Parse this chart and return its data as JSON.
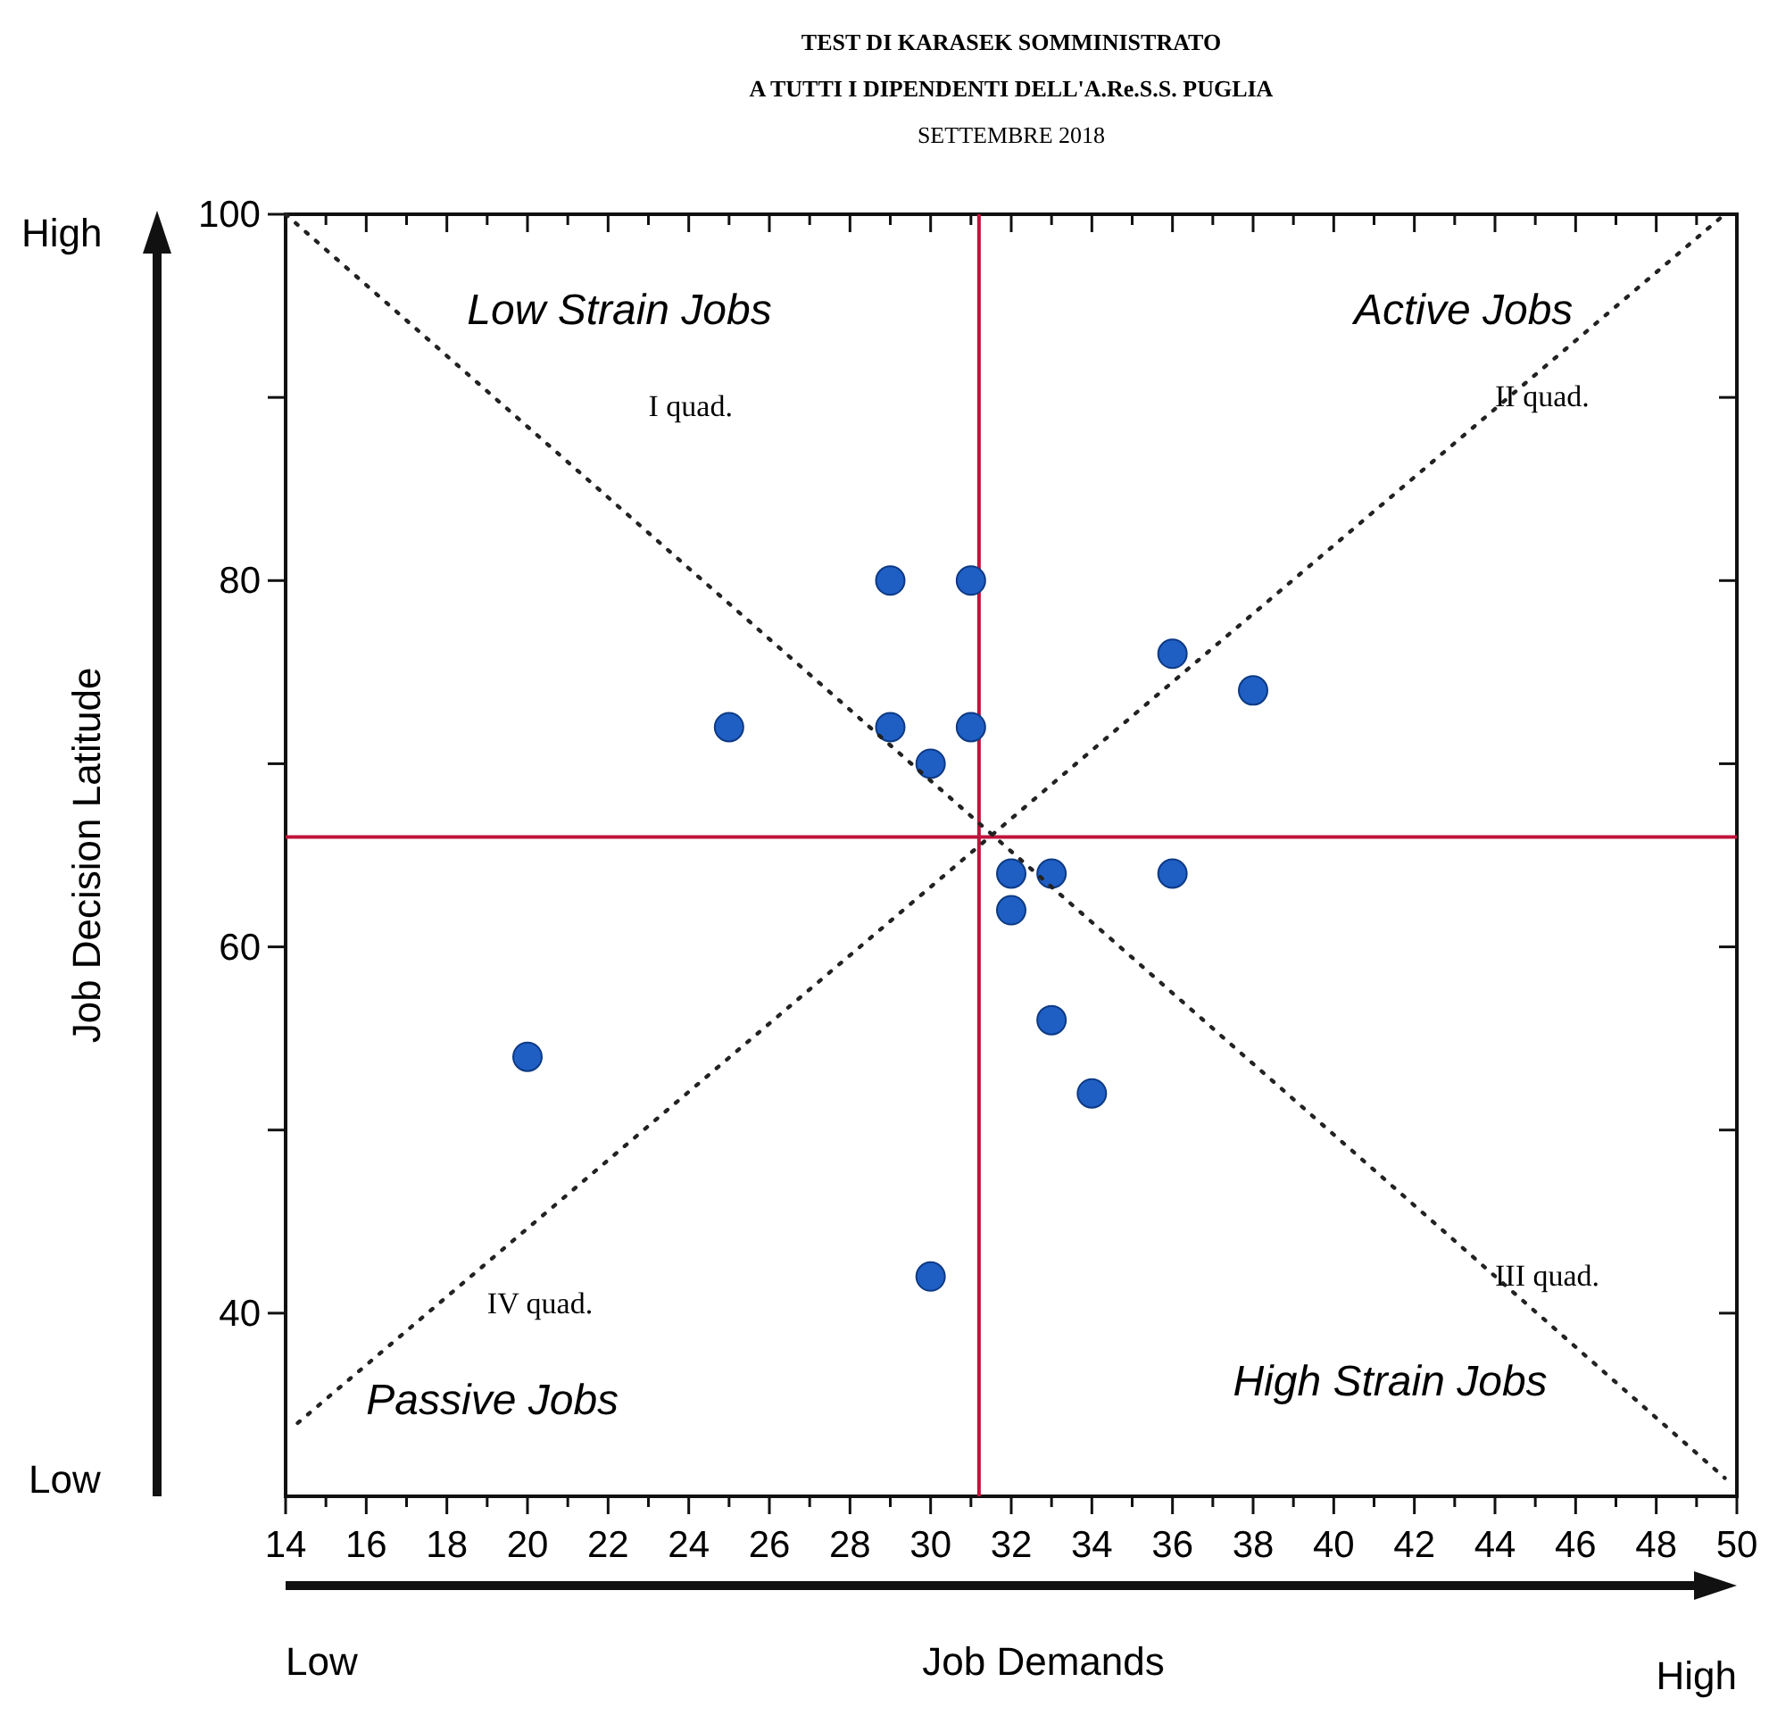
{
  "chart_data": {
    "type": "scatter",
    "title": "TEST DI KARASEK SOMMINISTRATO\nA TUTTI I DIPENDENTI DELL'A.Re.S.S. PUGLIA",
    "subtitle": "SETTEMBRE 2018",
    "xlabel": "Job Demands",
    "ylabel": "Job Decision Latitude",
    "xlim": [
      14,
      50
    ],
    "ylim": [
      30,
      100
    ],
    "xticks": [
      14,
      {
        "value": 15,
        "label": null
      },
      16,
      {
        "value": 17,
        "label": null
      },
      18,
      {
        "value": 19,
        "label": null
      },
      20,
      {
        "value": 21,
        "label": null
      },
      22,
      {
        "value": 23,
        "label": null
      },
      24,
      {
        "value": 25,
        "label": null
      },
      26,
      {
        "value": 27,
        "label": null
      },
      28,
      {
        "value": 29,
        "label": null
      },
      30,
      {
        "value": 31,
        "label": null
      },
      32,
      {
        "value": 33,
        "label": null
      },
      34,
      {
        "value": 35,
        "label": null
      },
      36,
      {
        "value": 37,
        "label": null
      },
      38,
      {
        "value": 39,
        "label": null
      },
      40,
      {
        "value": 41,
        "label": null
      },
      42,
      {
        "value": 43,
        "label": null
      },
      44,
      {
        "value": 45,
        "label": null
      },
      46,
      {
        "value": 47,
        "label": null
      },
      48,
      {
        "value": 49,
        "label": null
      },
      50
    ],
    "yticks": [
      40,
      {
        "value": 50,
        "label": null
      },
      60,
      {
        "value": 70,
        "label": null
      },
      80,
      {
        "value": 90,
        "label": null
      },
      100
    ],
    "grid": false,
    "marker": "circle",
    "series": [
      {
        "color": "#1f5fc4",
        "x": [
          25,
          29,
          31,
          29,
          31,
          30,
          36,
          38,
          32,
          33,
          36,
          32,
          33,
          34,
          20,
          30
        ],
        "values": [
          72,
          80,
          80,
          72,
          72,
          70,
          76,
          74,
          64,
          64,
          64,
          62,
          56,
          52,
          54,
          42
        ]
      },
      {
        "type": "line",
        "color": "#222222",
        "line_style": "dotted",
        "marker": "none",
        "x": [
          14,
          49.7
        ],
        "values": [
          100,
          31
        ]
      },
      {
        "type": "line",
        "color": "#222222",
        "line_style": "dotted",
        "marker": "none",
        "x": [
          14.3,
          49.7
        ],
        "values": [
          34,
          100
        ]
      }
    ],
    "ref_lines": [
      {
        "axis": "x",
        "value": 31.2,
        "color": "#c0143c"
      },
      {
        "axis": "y",
        "value": 66,
        "color": "#c0143c"
      }
    ],
    "annotations": [
      "Low Strain Jobs",
      "Active Jobs",
      "High Strain Jobs",
      "Passive Jobs",
      "I quad.",
      "II quad.",
      "III quad.",
      "IV quad.",
      "High",
      "Low",
      "Low",
      "High"
    ]
  }
}
